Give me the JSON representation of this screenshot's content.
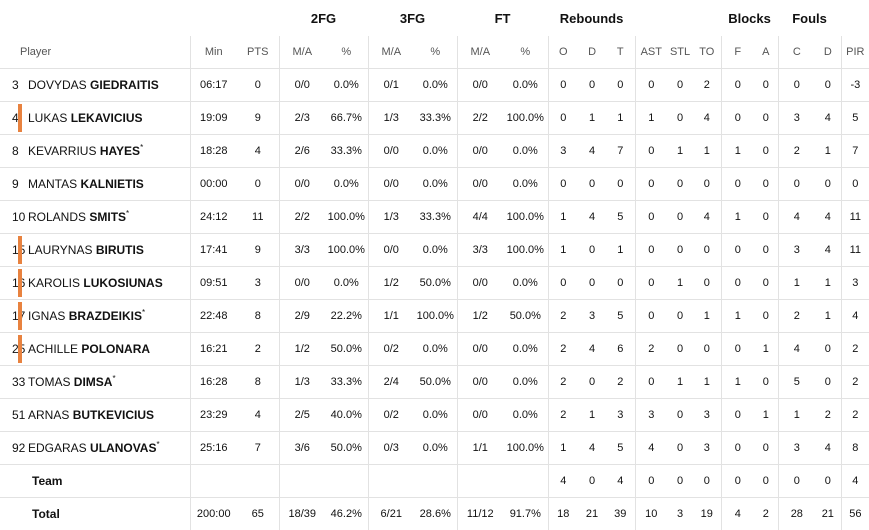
{
  "groups": {
    "fg2": "2FG",
    "fg3": "3FG",
    "ft": "FT",
    "reb": "Rebounds",
    "blocks": "Blocks",
    "fouls": "Fouls"
  },
  "headers": {
    "player": "Player",
    "min": "Min",
    "pts": "PTS",
    "fg2_ma": "M/A",
    "fg2_pct": "%",
    "fg3_ma": "M/A",
    "fg3_pct": "%",
    "ft_ma": "M/A",
    "ft_pct": "%",
    "reb_o": "O",
    "reb_d": "D",
    "reb_t": "T",
    "ast": "AST",
    "stl": "STL",
    "to": "TO",
    "blk_f": "F",
    "blk_a": "A",
    "foul_c": "C",
    "foul_d": "D",
    "pir": "PIR"
  },
  "players": [
    {
      "num": "3",
      "first": "DOVYDAS",
      "last": "GIEDRAITIS",
      "sup": "",
      "starter": false,
      "stats": [
        "06:17",
        "0",
        "0/0",
        "0.0%",
        "0/1",
        "0.0%",
        "0/0",
        "0.0%",
        "0",
        "0",
        "0",
        "0",
        "0",
        "2",
        "0",
        "0",
        "0",
        "0",
        "-3"
      ]
    },
    {
      "num": "4",
      "first": "LUKAS",
      "last": "LEKAVICIUS",
      "sup": "",
      "starter": true,
      "stats": [
        "19:09",
        "9",
        "2/3",
        "66.7%",
        "1/3",
        "33.3%",
        "2/2",
        "100.0%",
        "0",
        "1",
        "1",
        "1",
        "0",
        "4",
        "0",
        "0",
        "3",
        "4",
        "5"
      ]
    },
    {
      "num": "8",
      "first": "KEVARRIUS",
      "last": "HAYES",
      "sup": "*",
      "starter": false,
      "stats": [
        "18:28",
        "4",
        "2/6",
        "33.3%",
        "0/0",
        "0.0%",
        "0/0",
        "0.0%",
        "3",
        "4",
        "7",
        "0",
        "1",
        "1",
        "1",
        "0",
        "2",
        "1",
        "7"
      ]
    },
    {
      "num": "9",
      "first": "MANTAS",
      "last": "KALNIETIS",
      "sup": "",
      "starter": false,
      "stats": [
        "00:00",
        "0",
        "0/0",
        "0.0%",
        "0/0",
        "0.0%",
        "0/0",
        "0.0%",
        "0",
        "0",
        "0",
        "0",
        "0",
        "0",
        "0",
        "0",
        "0",
        "0",
        "0"
      ]
    },
    {
      "num": "10",
      "first": "ROLANDS",
      "last": "SMITS",
      "sup": "*",
      "starter": false,
      "stats": [
        "24:12",
        "11",
        "2/2",
        "100.0%",
        "1/3",
        "33.3%",
        "4/4",
        "100.0%",
        "1",
        "4",
        "5",
        "0",
        "0",
        "4",
        "1",
        "0",
        "4",
        "4",
        "11"
      ]
    },
    {
      "num": "15",
      "first": "LAURYNAS",
      "last": "BIRUTIS",
      "sup": "",
      "starter": true,
      "stats": [
        "17:41",
        "9",
        "3/3",
        "100.0%",
        "0/0",
        "0.0%",
        "3/3",
        "100.0%",
        "1",
        "0",
        "1",
        "0",
        "0",
        "0",
        "0",
        "0",
        "3",
        "4",
        "11"
      ]
    },
    {
      "num": "16",
      "first": "KAROLIS",
      "last": "LUKOSIUNAS",
      "sup": "",
      "starter": true,
      "stats": [
        "09:51",
        "3",
        "0/0",
        "0.0%",
        "1/2",
        "50.0%",
        "0/0",
        "0.0%",
        "0",
        "0",
        "0",
        "0",
        "1",
        "0",
        "0",
        "0",
        "1",
        "1",
        "3"
      ]
    },
    {
      "num": "17",
      "first": "IGNAS",
      "last": "BRAZDEIKIS",
      "sup": "*",
      "starter": true,
      "stats": [
        "22:48",
        "8",
        "2/9",
        "22.2%",
        "1/1",
        "100.0%",
        "1/2",
        "50.0%",
        "2",
        "3",
        "5",
        "0",
        "0",
        "1",
        "1",
        "0",
        "2",
        "1",
        "4"
      ]
    },
    {
      "num": "25",
      "first": "ACHILLE",
      "last": "POLONARA",
      "sup": "",
      "starter": true,
      "stats": [
        "16:21",
        "2",
        "1/2",
        "50.0%",
        "0/2",
        "0.0%",
        "0/0",
        "0.0%",
        "2",
        "4",
        "6",
        "2",
        "0",
        "0",
        "0",
        "1",
        "4",
        "0",
        "2"
      ]
    },
    {
      "num": "33",
      "first": "TOMAS",
      "last": "DIMSA",
      "sup": "*",
      "starter": false,
      "stats": [
        "16:28",
        "8",
        "1/3",
        "33.3%",
        "2/4",
        "50.0%",
        "0/0",
        "0.0%",
        "2",
        "0",
        "2",
        "0",
        "1",
        "1",
        "1",
        "0",
        "5",
        "0",
        "2"
      ]
    },
    {
      "num": "51",
      "first": "ARNAS",
      "last": "BUTKEVICIUS",
      "sup": "",
      "starter": false,
      "stats": [
        "23:29",
        "4",
        "2/5",
        "40.0%",
        "0/2",
        "0.0%",
        "0/0",
        "0.0%",
        "2",
        "1",
        "3",
        "3",
        "0",
        "3",
        "0",
        "1",
        "1",
        "2",
        "2"
      ]
    },
    {
      "num": "92",
      "first": "EDGARAS",
      "last": "ULANOVAS",
      "sup": "*",
      "starter": false,
      "stats": [
        "25:16",
        "7",
        "3/6",
        "50.0%",
        "0/3",
        "0.0%",
        "1/1",
        "100.0%",
        "1",
        "4",
        "5",
        "4",
        "0",
        "3",
        "0",
        "0",
        "3",
        "4",
        "8"
      ]
    }
  ],
  "team": {
    "label": "Team",
    "stats": [
      "",
      "",
      "",
      "",
      "",
      "",
      "",
      "",
      "4",
      "0",
      "4",
      "0",
      "0",
      "0",
      "0",
      "0",
      "0",
      "0",
      "4"
    ]
  },
  "total": {
    "label": "Total",
    "stats": [
      "200:00",
      "65",
      "18/39",
      "46.2%",
      "6/21",
      "28.6%",
      "11/12",
      "91.7%",
      "18",
      "21",
      "39",
      "10",
      "3",
      "19",
      "4",
      "2",
      "28",
      "21",
      "56"
    ]
  },
  "colors": {
    "starter_marker": "#e8823f",
    "divider": "#e2e2e2"
  }
}
